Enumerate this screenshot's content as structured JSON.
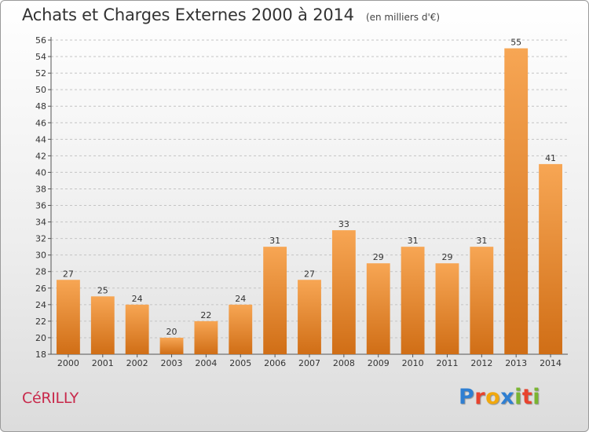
{
  "header": {
    "title": "Achats et Charges Externes 2000 à 2014",
    "subtitle": "(en milliers d'€)"
  },
  "footer": {
    "place_name": "CéRILLY",
    "brand_letters": [
      {
        "char": "P",
        "color": "#2f7fd2"
      },
      {
        "char": "r",
        "color": "#e8432e"
      },
      {
        "char": "o",
        "color": "#f1a80d"
      },
      {
        "char": "x",
        "color": "#2f7fd2"
      },
      {
        "char": "i",
        "color": "#7ab531"
      },
      {
        "char": "t",
        "color": "#e8432e"
      },
      {
        "char": "i",
        "color": "#7ab531"
      }
    ]
  },
  "chart_data": {
    "type": "bar",
    "title": "Achats et Charges Externes 2000 à 2014",
    "subtitle": "(en milliers d'€)",
    "categories": [
      "2000",
      "2001",
      "2002",
      "2003",
      "2004",
      "2005",
      "2006",
      "2007",
      "2008",
      "2009",
      "2010",
      "2011",
      "2012",
      "2013",
      "2014"
    ],
    "values": [
      27,
      25,
      24,
      20,
      22,
      24,
      31,
      27,
      33,
      29,
      31,
      29,
      31,
      55,
      41
    ],
    "ylim": [
      18,
      56
    ],
    "ytick_step": 2,
    "grid": "horizontal-dashed",
    "bar_color_top": "#f7a654",
    "bar_color_bottom": "#d06e16",
    "data_labels": true,
    "legend": "none"
  }
}
